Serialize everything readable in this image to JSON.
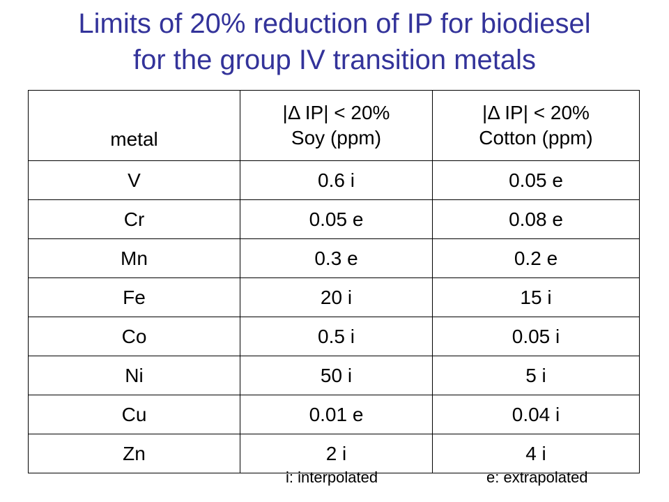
{
  "title": {
    "line1": "Limits of 20% reduction of IP for biodiesel",
    "line2": "for the group IV transition metals"
  },
  "colors": {
    "title": "#33339a",
    "text": "#000000",
    "border": "#000000"
  },
  "table": {
    "headers": {
      "metal": "metal",
      "soy_line1": "|Δ IP| < 20%",
      "soy_line2": "Soy (ppm)",
      "cotton_line1": "|Δ IP| < 20%",
      "cotton_line2": "Cotton (ppm)"
    },
    "rows": [
      {
        "metal": "V",
        "soy": "0.6 i",
        "cotton": "0.05 e"
      },
      {
        "metal": "Cr",
        "soy": "0.05 e",
        "cotton": "0.08 e"
      },
      {
        "metal": "Mn",
        "soy": "0.3 e",
        "cotton": "0.2 e"
      },
      {
        "metal": "Fe",
        "soy": "20 i",
        "cotton": "15 i"
      },
      {
        "metal": "Co",
        "soy": "0.5 i",
        "cotton": "0.05 i"
      },
      {
        "metal": "Ni",
        "soy": "50 i",
        "cotton": "5 i"
      },
      {
        "metal": "Cu",
        "soy": "0.01 e",
        "cotton": "0.04 i"
      },
      {
        "metal": "Zn",
        "soy": "2 i",
        "cotton": "4 i"
      }
    ]
  },
  "legend": {
    "interpolated": "i: interpolated",
    "extrapolated": "e: extrapolated"
  }
}
